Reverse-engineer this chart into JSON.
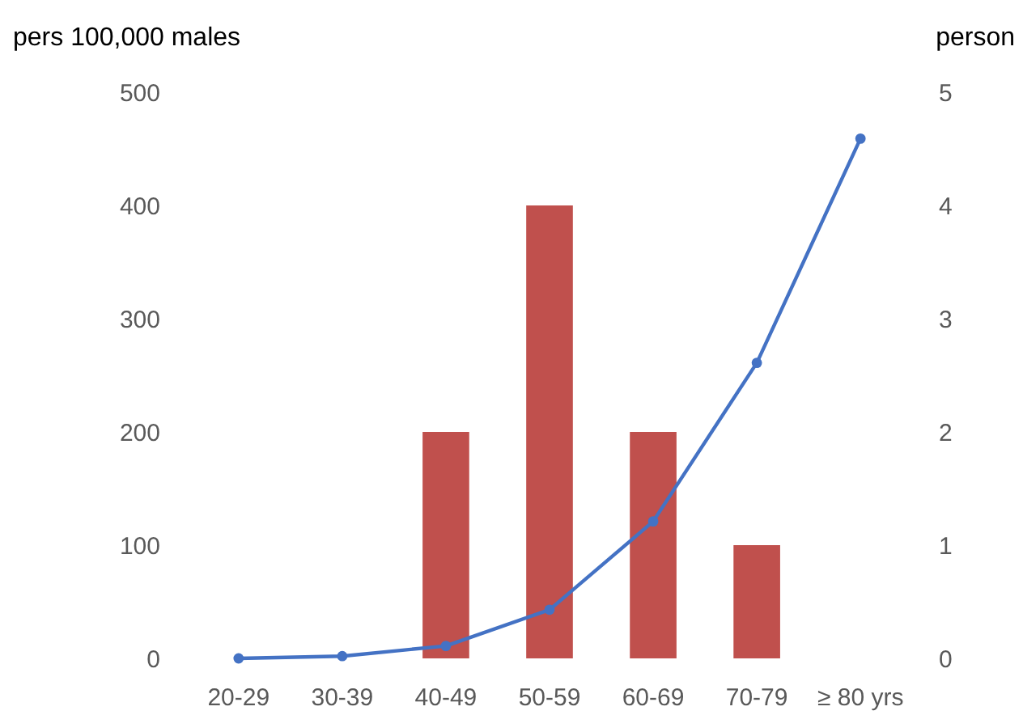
{
  "chart_data": {
    "type": "bar",
    "ylabel": "pers 100,000 males",
    "y2label": "person",
    "categories": [
      "20-29",
      "30-39",
      "40-49",
      "50-59",
      "60-69",
      "70-79",
      "≥ 80 yrs"
    ],
    "series": [
      {
        "axis": "y2",
        "color": "#c0504d",
        "values": [
          0,
          0,
          2,
          4,
          2,
          1,
          0
        ]
      },
      {
        "type": "line",
        "axis": "y",
        "color": "#4472c4",
        "marker": "circle",
        "values": [
          0,
          2,
          11,
          43,
          121,
          261,
          459
        ]
      }
    ],
    "ylim": [
      0,
      500
    ],
    "yticks": [
      0,
      100,
      200,
      300,
      400,
      500
    ],
    "y2lim": [
      0,
      5
    ],
    "y2ticks": [
      0,
      1,
      2,
      3,
      4,
      5
    ],
    "grid": false
  }
}
